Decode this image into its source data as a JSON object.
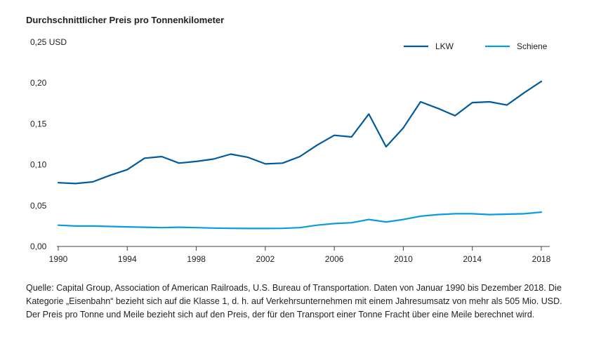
{
  "chart_data": {
    "type": "line",
    "title": "Durchschnittlicher Preis pro Tonnenkilometer",
    "ylabel": "",
    "xlabel": "",
    "ylim": [
      0,
      0.25
    ],
    "xlim": [
      1990,
      2018
    ],
    "y_ticks": [
      {
        "value": 0.25,
        "label": "0,25 USD"
      },
      {
        "value": 0.2,
        "label": "0,20"
      },
      {
        "value": 0.15,
        "label": "0,15"
      },
      {
        "value": 0.1,
        "label": "0,10"
      },
      {
        "value": 0.05,
        "label": "0,05"
      },
      {
        "value": 0.0,
        "label": "0,00"
      }
    ],
    "x_ticks": [
      {
        "value": 1990,
        "label": "1990"
      },
      {
        "value": 1994,
        "label": "1994"
      },
      {
        "value": 1998,
        "label": "1998"
      },
      {
        "value": 2002,
        "label": "2002"
      },
      {
        "value": 2006,
        "label": "2006"
      },
      {
        "value": 2010,
        "label": "2010"
      },
      {
        "value": 2014,
        "label": "2014"
      },
      {
        "value": 2018,
        "label": "2018"
      }
    ],
    "x": [
      1990,
      1991,
      1992,
      1993,
      1994,
      1995,
      1996,
      1997,
      1998,
      1999,
      2000,
      2001,
      2002,
      2003,
      2004,
      2005,
      2006,
      2007,
      2008,
      2009,
      2010,
      2011,
      2012,
      2013,
      2014,
      2015,
      2016,
      2017,
      2018
    ],
    "series": [
      {
        "name": "LKW",
        "color": "#005a9c",
        "values": [
          0.078,
          0.077,
          0.079,
          0.087,
          0.094,
          0.108,
          0.11,
          0.102,
          0.104,
          0.107,
          0.113,
          0.109,
          0.101,
          0.102,
          0.11,
          0.124,
          0.136,
          0.134,
          0.162,
          0.122,
          0.145,
          0.177,
          0.169,
          0.16,
          0.176,
          0.177,
          0.173,
          0.188,
          0.202
        ]
      },
      {
        "name": "Schiene",
        "color": "#0a9ae0",
        "values": [
          0.026,
          0.025,
          0.025,
          0.0245,
          0.024,
          0.0235,
          0.023,
          0.0235,
          0.023,
          0.0225,
          0.0222,
          0.022,
          0.022,
          0.0222,
          0.023,
          0.026,
          0.028,
          0.029,
          0.033,
          0.03,
          0.033,
          0.037,
          0.039,
          0.04,
          0.04,
          0.039,
          0.0395,
          0.04,
          0.042
        ]
      }
    ],
    "legend_position": "top-right",
    "grid": false
  },
  "source_text": "Quelle: Capital Group, Association of American Railroads, U.S. Bureau of Transportation. Daten von Januar 1990 bis Dezember 2018. Die Kategorie „Eisenbahn“ bezieht sich auf die Klasse 1, d. h. auf Verkehrsunternehmen mit einem Jahresumsatz von mehr als 505 Mio. USD. Der Preis pro Tonne und Meile bezieht sich auf den Preis, der für den Transport einer Tonne Fracht über eine Meile berechnet wird."
}
